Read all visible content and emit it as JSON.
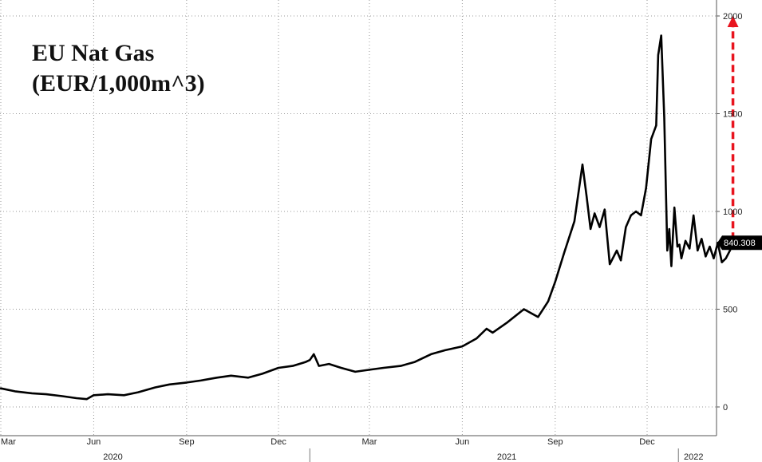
{
  "chart_data": {
    "type": "line",
    "title": "EU Nat Gas",
    "subtitle": "(EUR/1,000m^3)",
    "xlabel": "",
    "ylabel": "",
    "ylim": [
      -150,
      2050
    ],
    "yticks": [
      0,
      500,
      1000,
      1500,
      2000
    ],
    "grid": true,
    "x_tick_labels": [
      "Mar",
      "Jun",
      "Sep",
      "Dec",
      "Mar",
      "Jun",
      "Sep",
      "Dec"
    ],
    "x_tick_dates": [
      "2020-03-01",
      "2020-06-01",
      "2020-09-01",
      "2020-12-01",
      "2021-03-01",
      "2021-06-01",
      "2021-09-01",
      "2021-12-01"
    ],
    "year_labels": [
      "2020",
      "2021",
      "2022"
    ],
    "year_label_dates": [
      "2020-06-20",
      "2021-07-15",
      "2022-01-16"
    ],
    "last_value_label": "840.308",
    "series": [
      {
        "x": [
          "2020-03-01",
          "2020-03-15",
          "2020-04-01",
          "2020-04-15",
          "2020-05-01",
          "2020-05-15",
          "2020-05-25",
          "2020-06-01",
          "2020-06-15",
          "2020-07-01",
          "2020-07-15",
          "2020-08-01",
          "2020-08-15",
          "2020-09-01",
          "2020-09-15",
          "2020-10-01",
          "2020-10-15",
          "2020-11-01",
          "2020-11-15",
          "2020-12-01",
          "2020-12-15",
          "2020-12-28",
          "2021-01-01",
          "2021-01-05",
          "2021-01-10",
          "2021-01-20",
          "2021-02-01",
          "2021-02-15",
          "2021-03-01",
          "2021-03-15",
          "2021-04-01",
          "2021-04-15",
          "2021-05-01",
          "2021-05-15",
          "2021-06-01",
          "2021-06-15",
          "2021-06-25",
          "2021-07-01",
          "2021-07-15",
          "2021-08-01",
          "2021-08-15",
          "2021-08-25",
          "2021-09-01",
          "2021-09-10",
          "2021-09-20",
          "2021-09-28",
          "2021-10-02",
          "2021-10-06",
          "2021-10-10",
          "2021-10-15",
          "2021-10-20",
          "2021-10-25",
          "2021-11-01",
          "2021-11-05",
          "2021-11-10",
          "2021-11-15",
          "2021-11-20",
          "2021-11-25",
          "2021-11-30",
          "2021-12-05",
          "2021-12-10",
          "2021-12-12",
          "2021-12-15",
          "2021-12-18",
          "2021-12-21",
          "2021-12-23",
          "2021-12-25",
          "2021-12-28",
          "2021-12-31",
          "2022-01-02",
          "2022-01-04",
          "2022-01-08",
          "2022-01-12",
          "2022-01-16",
          "2022-01-20",
          "2022-01-24",
          "2022-01-28",
          "2022-02-01",
          "2022-02-05",
          "2022-02-09",
          "2022-02-13",
          "2022-02-17",
          "2022-02-21",
          "2022-02-24"
        ],
        "values": [
          95,
          80,
          70,
          65,
          55,
          45,
          40,
          60,
          65,
          60,
          75,
          100,
          115,
          125,
          135,
          150,
          160,
          150,
          170,
          200,
          210,
          230,
          240,
          270,
          210,
          220,
          200,
          180,
          190,
          200,
          210,
          230,
          270,
          290,
          310,
          350,
          400,
          380,
          430,
          500,
          460,
          540,
          640,
          790,
          950,
          1240,
          1080,
          910,
          990,
          920,
          1010,
          730,
          800,
          750,
          920,
          980,
          1000,
          980,
          1120,
          1370,
          1440,
          1800,
          1900,
          1480,
          800,
          910,
          720,
          1020,
          820,
          830,
          760,
          850,
          810,
          980,
          800,
          860,
          770,
          820,
          760,
          840,
          740,
          760,
          800,
          840
        ]
      }
    ]
  }
}
